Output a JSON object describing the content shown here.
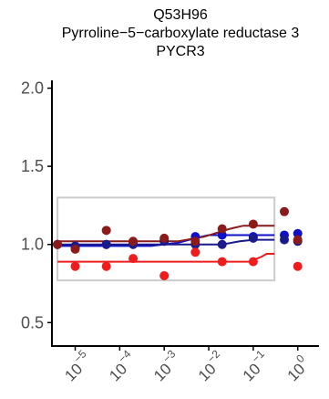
{
  "chart_data": {
    "type": "scatter",
    "title_lines": [
      "Q53H96",
      "Pyrroline−5−carboxylate reductase 3",
      "PYCR3"
    ],
    "xlabel": "",
    "ylabel": "",
    "x_scale": "log10",
    "xlim": [
      3e-06,
      3.0
    ],
    "ylim": [
      0.35,
      2.05
    ],
    "y_ticks": [
      {
        "value": 0.5,
        "label": "0.5"
      },
      {
        "value": 1.0,
        "label": "1.0"
      },
      {
        "value": 1.5,
        "label": "1.5"
      },
      {
        "value": 2.0,
        "label": "2.0"
      }
    ],
    "x_ticks": [
      {
        "value": 1e-05,
        "base": "10",
        "exp": "−5"
      },
      {
        "value": 0.0001,
        "base": "10",
        "exp": "−4"
      },
      {
        "value": 0.001,
        "base": "10",
        "exp": "−3"
      },
      {
        "value": 0.01,
        "base": "10",
        "exp": "−2"
      },
      {
        "value": 0.1,
        "base": "10",
        "exp": "−1"
      },
      {
        "value": 1.0,
        "base": "10",
        "exp": "0"
      }
    ],
    "shaded_region": {
      "x0": 4e-06,
      "x1": 0.3,
      "y0": 0.77,
      "y1": 1.3,
      "stroke": "#cccccc"
    },
    "grid": false,
    "legend": "none",
    "series": [
      {
        "color": "#1010c8",
        "points": [
          [
            4e-06,
            1.0
          ],
          [
            1e-05,
            0.98
          ],
          [
            5e-05,
            1.0
          ],
          [
            0.0002,
            1.01
          ],
          [
            0.001,
            1.03
          ],
          [
            0.005,
            1.05
          ],
          [
            0.02,
            1.06
          ],
          [
            0.1,
            1.05
          ],
          [
            0.5,
            1.06
          ],
          [
            1.0,
            1.07
          ]
        ],
        "curve": [
          [
            4e-06,
            0.99
          ],
          [
            0.0005,
            0.99
          ],
          [
            0.002,
            1.01
          ],
          [
            0.005,
            1.04
          ],
          [
            0.01,
            1.06
          ],
          [
            0.3,
            1.06
          ]
        ]
      },
      {
        "color": "#1a1a8c",
        "points": [
          [
            4e-06,
            1.0
          ],
          [
            1e-05,
            0.99
          ],
          [
            5e-05,
            1.0
          ],
          [
            0.0002,
            1.0
          ],
          [
            0.001,
            1.02
          ],
          [
            0.005,
            1.0
          ],
          [
            0.02,
            1.0
          ],
          [
            0.1,
            1.04
          ],
          [
            0.5,
            1.03
          ],
          [
            1.0,
            1.02
          ]
        ],
        "curve": [
          [
            4e-06,
            1.0
          ],
          [
            0.02,
            1.0
          ],
          [
            0.05,
            1.02
          ],
          [
            0.1,
            1.03
          ],
          [
            0.3,
            1.03
          ]
        ]
      },
      {
        "color": "#8b1a1a",
        "points": [
          [
            4e-06,
            1.0
          ],
          [
            1e-05,
            0.97
          ],
          [
            5e-05,
            1.09
          ],
          [
            0.0002,
            1.02
          ],
          [
            0.001,
            1.04
          ],
          [
            0.005,
            1.02
          ],
          [
            0.02,
            1.1
          ],
          [
            0.1,
            1.13
          ],
          [
            0.5,
            1.21
          ],
          [
            1.0,
            1.03
          ]
        ],
        "curve": [
          [
            4e-06,
            1.02
          ],
          [
            0.002,
            1.02
          ],
          [
            0.008,
            1.05
          ],
          [
            0.03,
            1.1
          ],
          [
            0.06,
            1.12
          ],
          [
            0.3,
            1.12
          ]
        ]
      },
      {
        "color": "#ee1c1c",
        "points": [
          [
            1e-05,
            0.86
          ],
          [
            5e-05,
            0.86
          ],
          [
            0.0002,
            0.91
          ],
          [
            0.001,
            0.8
          ],
          [
            0.005,
            0.95
          ],
          [
            0.02,
            0.89
          ],
          [
            0.1,
            0.89
          ],
          [
            1.0,
            0.86
          ]
        ],
        "curve": [
          [
            4e-06,
            0.89
          ],
          [
            0.08,
            0.89
          ],
          [
            0.15,
            0.92
          ],
          [
            0.2,
            0.94
          ],
          [
            0.3,
            0.94
          ]
        ]
      }
    ]
  }
}
